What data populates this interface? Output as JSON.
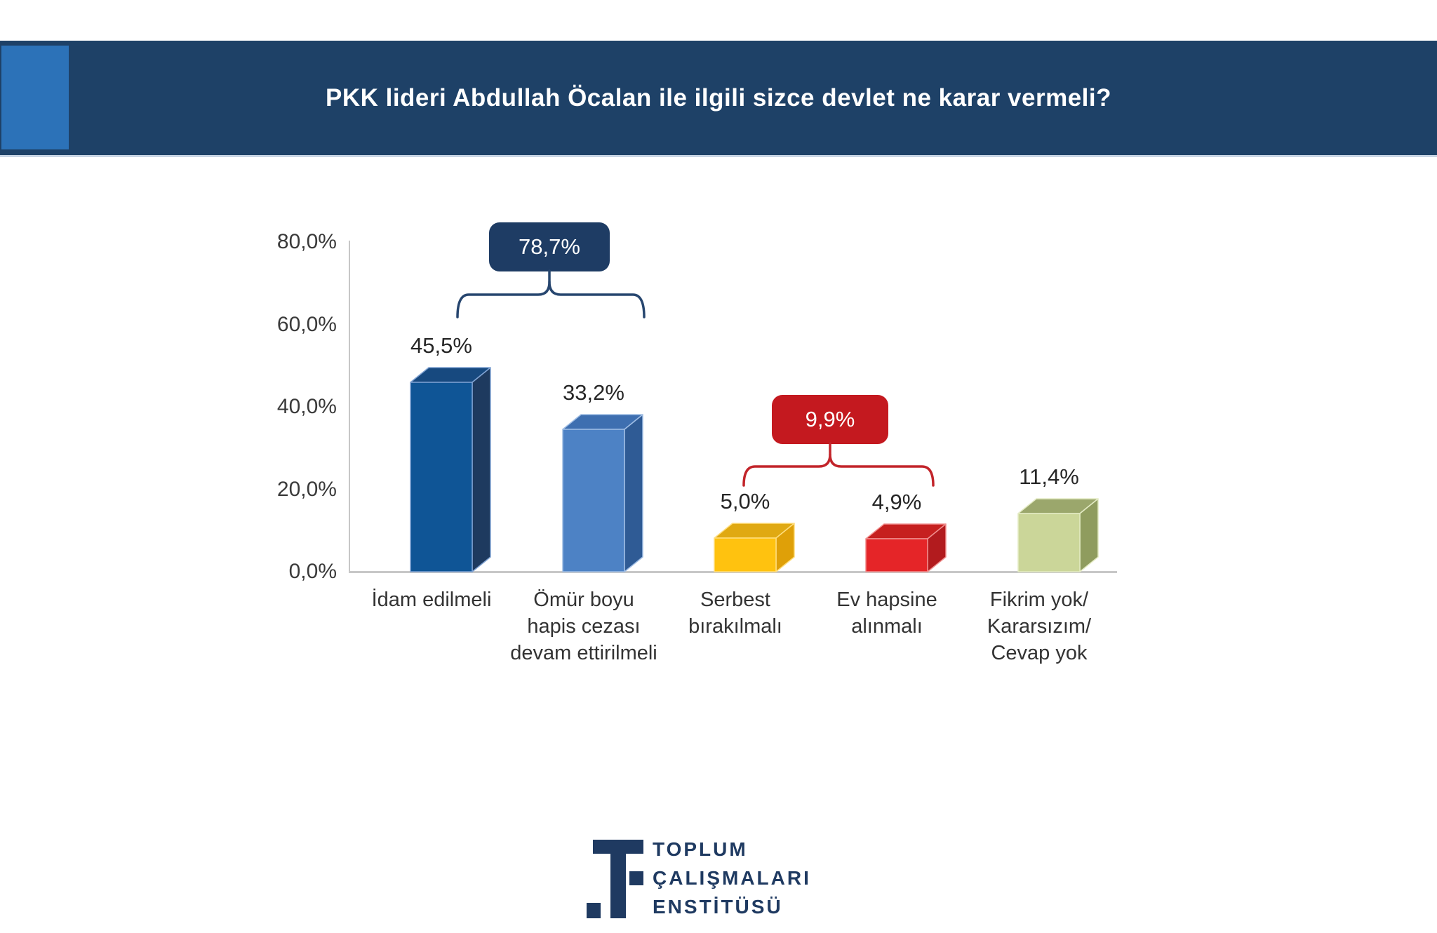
{
  "header": {
    "title": "PKK lideri Abdullah Öcalan ile ilgili sizce devlet ne karar vermeli?"
  },
  "chart_data": {
    "type": "bar",
    "title": "PKK lideri Abdullah Öcalan ile ilgili sizce devlet ne karar vermeli?",
    "categories": [
      "İdam edilmeli",
      "Ömür boyu hapis cezası devam ettirilmeli",
      "Serbest bırakılmalı",
      "Ev hapsine alınmalı",
      "Fikrim yok/ Kararsızım/ Cevap yok"
    ],
    "values": [
      45.5,
      33.2,
      5.0,
      4.9,
      11.4
    ],
    "value_labels": [
      "45,5%",
      "33,2%",
      "5,0%",
      "4,9%",
      "11,4%"
    ],
    "yticks": [
      "80,0%",
      "60,0%",
      "40,0%",
      "20,0%",
      "0,0%"
    ],
    "ytick_values": [
      80,
      60,
      40,
      20,
      0
    ],
    "ylim": [
      0,
      80
    ],
    "grid": "off",
    "legend": "none",
    "style": "3d-bars",
    "bar_styles": [
      {
        "front": "#0F5596",
        "side": "#1E3A5F",
        "top": "#17497F",
        "edge": "#7FA2D2"
      },
      {
        "front": "#4D82C5",
        "side": "#2F5B95",
        "top": "#3E6FB0",
        "edge": "#9FBDE4"
      },
      {
        "front": "#FFC20F",
        "side": "#DFA008",
        "top": "#E0A912",
        "edge": "#FFDE7E"
      },
      {
        "front": "#E52528",
        "side": "#B21B1E",
        "top": "#C6201F",
        "edge": "#F0908F"
      },
      {
        "front": "#CBD699",
        "side": "#8F9C5E",
        "top": "#9BA76C",
        "edge": "#E4EBC4"
      }
    ],
    "groups": [
      {
        "label": "78,7%",
        "spans": [
          "İdam edilmeli",
          "Ömür boyu hapis cezası devam ettirilmeli"
        ],
        "box_color": "#1E3C64",
        "brace_color": "#27466F"
      },
      {
        "label": "9,9%",
        "spans": [
          "Serbest bırakılmalı",
          "Ev hapsine alınmalı"
        ],
        "box_color": "#C4191F",
        "brace_color": "#C2242A"
      }
    ]
  },
  "footer": {
    "logo_lines": [
      "TOPLUM",
      "ÇALIŞMALARI",
      "ENSTİTÜSÜ"
    ]
  },
  "colors": {
    "header_bg": "#1E4167",
    "header_accent": "#2C72B8",
    "axis": "#C7C7C7",
    "tick_text": "#3A3A3A"
  }
}
